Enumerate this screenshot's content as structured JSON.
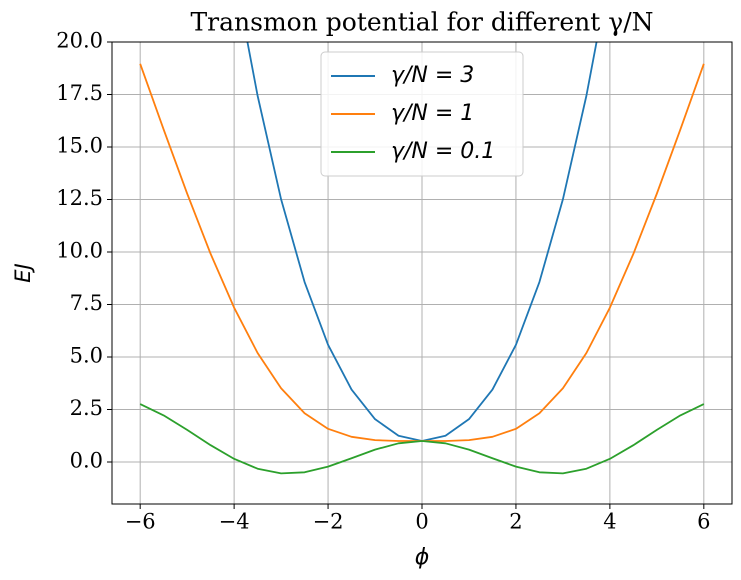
{
  "chart_data": {
    "type": "line",
    "title": "Transmon potential for different γ/N",
    "xlabel": "ϕ",
    "ylabel": "EJ",
    "x": [
      -6,
      -5.5,
      -5,
      -4.5,
      -4,
      -3.5,
      -3,
      -2.5,
      -2,
      -1.5,
      -1,
      -0.5,
      0,
      0.5,
      1,
      1.5,
      2,
      2.5,
      3,
      3.5,
      4,
      4.5,
      5,
      5.5,
      6
    ],
    "series": [
      {
        "name": "γ/N = 3",
        "color": "#1f77b4",
        "values": [
          null,
          null,
          null,
          null,
          23.35,
          17.44,
          12.51,
          8.57,
          5.58,
          3.45,
          2.04,
          1.25,
          1,
          1.25,
          2.04,
          3.45,
          5.58,
          8.57,
          12.51,
          17.44,
          23.35,
          null,
          null,
          null,
          null
        ]
      },
      {
        "name": "γ/N = 1",
        "color": "#ff7f0e",
        "values": [
          18.96,
          15.83,
          12.78,
          9.91,
          7.35,
          5.19,
          3.51,
          2.32,
          1.58,
          1.2,
          1.04,
          1,
          1,
          1,
          1.04,
          1.2,
          1.58,
          2.32,
          3.51,
          5.19,
          7.35,
          9.91,
          12.78,
          15.83,
          18.96
        ]
      },
      {
        "name": "γ/N = 0.1",
        "color": "#2ca02c",
        "values": [
          2.76,
          2.22,
          1.53,
          0.8,
          0.15,
          -0.32,
          -0.54,
          -0.49,
          -0.22,
          0.18,
          0.59,
          0.89,
          1,
          0.89,
          0.59,
          0.18,
          -0.22,
          -0.49,
          -0.54,
          -0.32,
          0.15,
          0.8,
          1.53,
          2.22,
          2.76
        ]
      }
    ],
    "xlim": [
      -6.6,
      6.6
    ],
    "ylim": [
      -2,
      20
    ],
    "xticks": [
      {
        "value": -6,
        "label": "−6"
      },
      {
        "value": -4,
        "label": "−4"
      },
      {
        "value": -2,
        "label": "−2"
      },
      0,
      2,
      4,
      6
    ],
    "yticks": [
      {
        "value": 0,
        "label": "0.0"
      },
      2.5,
      {
        "value": 5,
        "label": "5.0"
      },
      7.5,
      {
        "value": 10,
        "label": "10.0"
      },
      12.5,
      {
        "value": 15,
        "label": "15.0"
      },
      17.5,
      {
        "value": 20,
        "label": "20.0"
      }
    ],
    "grid": true,
    "legend": "upper center"
  }
}
